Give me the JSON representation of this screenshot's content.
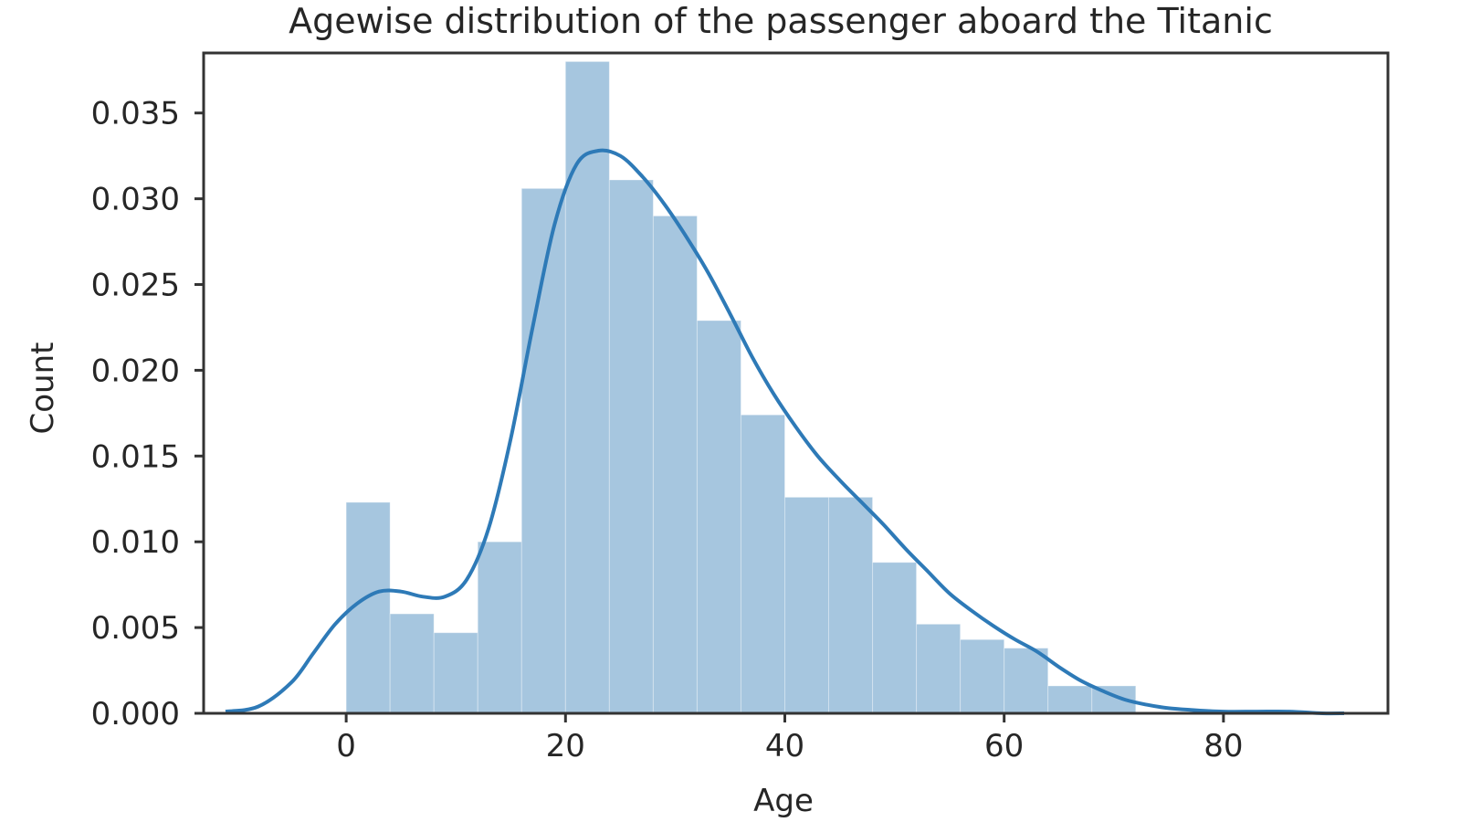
{
  "chart_data": {
    "type": "bar",
    "title": "Agewise distribution of the passenger aboard the Titanic",
    "xlabel": "Age",
    "ylabel": "Count",
    "xlim": [
      -13,
      95
    ],
    "ylim": [
      0,
      0.0385
    ],
    "x_ticks": [
      0,
      20,
      40,
      60,
      80
    ],
    "x_tick_labels": [
      "0",
      "20",
      "40",
      "60",
      "80"
    ],
    "y_ticks": [
      0,
      0.005,
      0.01,
      0.015,
      0.02,
      0.025,
      0.03,
      0.035
    ],
    "y_tick_labels": [
      "0.000",
      "0.005",
      "0.010",
      "0.015",
      "0.020",
      "0.025",
      "0.030",
      "0.035"
    ],
    "grid": false,
    "bars_color": "#a6c6df",
    "line_color": "#2e7ab7",
    "histogram": {
      "bin_edges": [
        0,
        4,
        8,
        12,
        16,
        20,
        24,
        28,
        32,
        36,
        40,
        44,
        48,
        52,
        56,
        60,
        64,
        68,
        72
      ],
      "values": [
        0.0123,
        0.0058,
        0.0047,
        0.01,
        0.0306,
        0.038,
        0.0311,
        0.029,
        0.0229,
        0.0174,
        0.0126,
        0.0126,
        0.0088,
        0.0052,
        0.0043,
        0.0038,
        0.0016,
        0.0016
      ]
    },
    "kde_series": {
      "x": [
        -11,
        -8,
        -5,
        -3,
        -1,
        1,
        3,
        5,
        7,
        9,
        11,
        13,
        15,
        17,
        19,
        21,
        23,
        25,
        27,
        29,
        31,
        33,
        35,
        37,
        39,
        41,
        43,
        45,
        47,
        49,
        51,
        53,
        55,
        57,
        59,
        61,
        63,
        65,
        67,
        69,
        71,
        73,
        75,
        77,
        80,
        83,
        86,
        89,
        91
      ],
      "y": [
        0.0001,
        0.0004,
        0.0018,
        0.0035,
        0.0052,
        0.0064,
        0.0071,
        0.0071,
        0.0068,
        0.0068,
        0.0078,
        0.0108,
        0.016,
        0.0225,
        0.0285,
        0.032,
        0.0328,
        0.0325,
        0.0313,
        0.0297,
        0.0278,
        0.0257,
        0.0233,
        0.0208,
        0.0186,
        0.0167,
        0.015,
        0.0136,
        0.0123,
        0.011,
        0.0096,
        0.0083,
        0.007,
        0.006,
        0.0051,
        0.0043,
        0.0036,
        0.0027,
        0.0019,
        0.0013,
        0.0008,
        0.0005,
        0.0003,
        0.0002,
        0.0001,
        0.0001,
        0.0001,
        0.0,
        0.0
      ]
    }
  }
}
